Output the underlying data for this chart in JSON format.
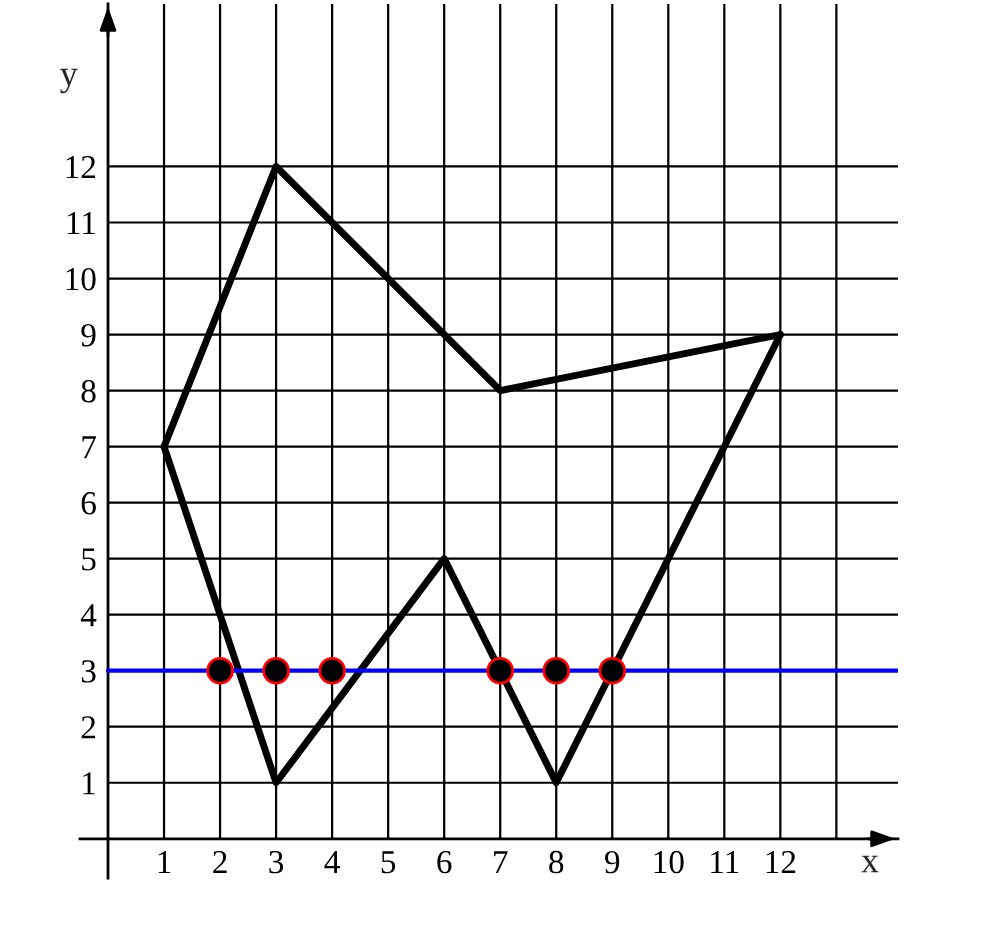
{
  "chart_data": {
    "type": "line",
    "xlabel": "x",
    "ylabel": "y",
    "series": [
      {
        "color": "#000000",
        "x": [
          1,
          3,
          7,
          12
        ],
        "values": [
          7,
          12,
          8,
          9
        ]
      },
      {
        "color": "#000000",
        "x": [
          1,
          3,
          6,
          8,
          12
        ],
        "values": [
          7,
          1,
          5,
          1,
          9
        ]
      },
      {
        "type": "scatter",
        "color": "#000000",
        "marker": "circle",
        "x": [
          2,
          3,
          4,
          7,
          8,
          9
        ],
        "values": [
          3,
          3,
          3,
          3,
          3,
          3
        ]
      }
    ],
    "ref_lines": [
      {
        "axis": "y",
        "value": 3,
        "color": "#0000ff"
      }
    ],
    "xlim": [
      -0.5,
      14.1
    ],
    "ylim": [
      -0.7,
      14.9
    ],
    "xticks": [
      1,
      2,
      3,
      4,
      5,
      6,
      7,
      8,
      9,
      10,
      11,
      12,
      {
        "value": 13,
        "label": null
      }
    ],
    "yticks": [
      1,
      2,
      3,
      4,
      5,
      6,
      7,
      8,
      9,
      10,
      11,
      12
    ],
    "grid": true
  }
}
